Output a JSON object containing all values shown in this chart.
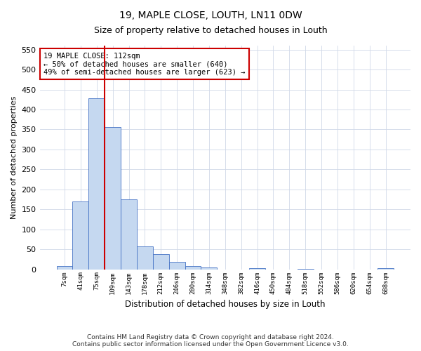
{
  "title": "19, MAPLE CLOSE, LOUTH, LN11 0DW",
  "subtitle": "Size of property relative to detached houses in Louth",
  "xlabel": "Distribution of detached houses by size in Louth",
  "ylabel": "Number of detached properties",
  "bar_labels": [
    "7sqm",
    "41sqm",
    "75sqm",
    "109sqm",
    "143sqm",
    "178sqm",
    "212sqm",
    "246sqm",
    "280sqm",
    "314sqm",
    "348sqm",
    "382sqm",
    "416sqm",
    "450sqm",
    "484sqm",
    "518sqm",
    "552sqm",
    "586sqm",
    "620sqm",
    "654sqm",
    "688sqm"
  ],
  "bar_values": [
    8,
    170,
    428,
    356,
    175,
    57,
    38,
    18,
    9,
    5,
    0,
    0,
    3,
    0,
    0,
    2,
    0,
    0,
    0,
    0,
    3
  ],
  "bar_color": "#c5d8f0",
  "bar_edge_color": "#4472c4",
  "vline_x_index": 3,
  "vline_color": "#cc0000",
  "annotation_text": "19 MAPLE CLOSE: 112sqm\n← 50% of detached houses are smaller (640)\n49% of semi-detached houses are larger (623) →",
  "annotation_box_color": "#ffffff",
  "annotation_box_edge": "#cc0000",
  "ylim": [
    0,
    560
  ],
  "yticks": [
    0,
    50,
    100,
    150,
    200,
    250,
    300,
    350,
    400,
    450,
    500,
    550
  ],
  "footer": "Contains HM Land Registry data © Crown copyright and database right 2024.\nContains public sector information licensed under the Open Government Licence v3.0.",
  "background_color": "#ffffff",
  "grid_color": "#d0d8e8",
  "title_fontsize": 10,
  "subtitle_fontsize": 9
}
